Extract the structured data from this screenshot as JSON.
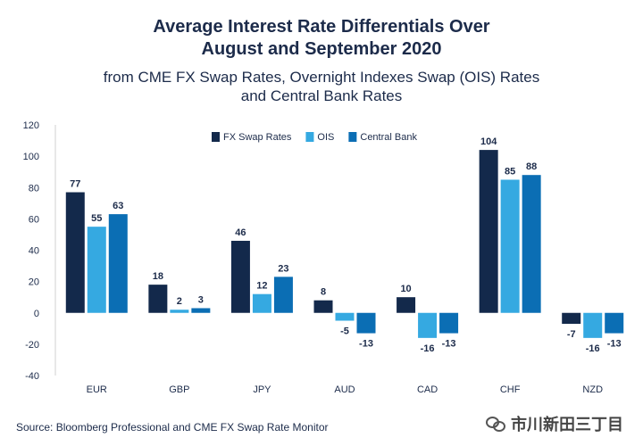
{
  "title": "Average Interest Rate Differentials Over\nAugust and September 2020",
  "subtitle": "from CME FX Swap Rates, Overnight Indexes Swap (OIS) Rates\nand Central Bank Rates",
  "source": "Source: Bloomberg Professional and CME FX Swap Rate Monitor",
  "watermark": {
    "text": "市川新田三丁目",
    "icon": "wechat-icon"
  },
  "colors": {
    "fx": "#13294b",
    "ois": "#35a9e1",
    "cb": "#0b6eb4",
    "axis": "#d0d0d0",
    "text": "#1c2b4a"
  },
  "chart_data": {
    "type": "bar",
    "categories": [
      "EUR",
      "GBP",
      "JPY",
      "AUD",
      "CAD",
      "CHF",
      "NZD"
    ],
    "series": [
      {
        "name": "FX Swap Rates",
        "color": "#13294b",
        "values": [
          77,
          18,
          46,
          8,
          10,
          104,
          -7
        ]
      },
      {
        "name": "OIS",
        "color": "#35a9e1",
        "values": [
          55,
          2,
          12,
          -5,
          -16,
          85,
          -16
        ]
      },
      {
        "name": "Central Bank",
        "color": "#0b6eb4",
        "values": [
          63,
          3,
          23,
          -13,
          -13,
          88,
          -13
        ]
      }
    ],
    "ylim": [
      -40,
      120
    ],
    "yticks": [
      -40,
      -20,
      0,
      20,
      40,
      60,
      80,
      100,
      120
    ],
    "grid": false,
    "legend": "top-center",
    "xlabel": "",
    "ylabel": ""
  }
}
